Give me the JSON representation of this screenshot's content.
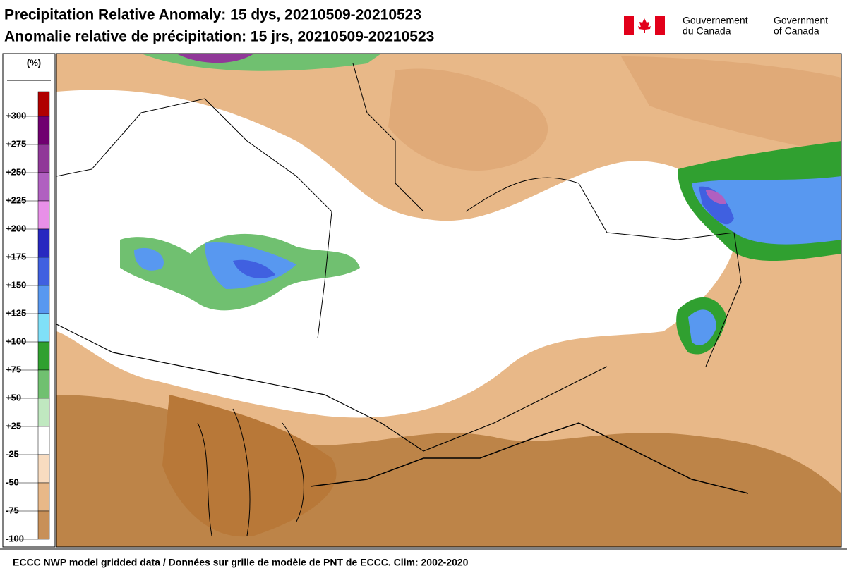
{
  "header": {
    "title_en": "Precipitation Relative Anomaly: 15 dys, 20210509-20210523",
    "title_fr": "Anomalie relative de précipitation: 15 jrs, 20210509-20210523",
    "gov_fr": [
      "Gouvernement",
      "du Canada"
    ],
    "gov_en": [
      "Government",
      "of Canada"
    ]
  },
  "legend": {
    "unit": "(%)",
    "labels": [
      "+300",
      "+275",
      "+250",
      "+225",
      "+200",
      "+175",
      "+150",
      "+125",
      "+100",
      "+75",
      "+50",
      "+25",
      "-25",
      "-50",
      "-75",
      "-100"
    ],
    "colors": [
      "#b00000",
      "#700070",
      "#903898",
      "#b060c0",
      "#e890e8",
      "#2828c0",
      "#4060e0",
      "#5898f0",
      "#80e0f8",
      "#30a030",
      "#70c070",
      "#c0e8c0",
      "#ffffff",
      "#f8dcc0",
      "#e8b888",
      "#c89058"
    ]
  },
  "footer": "ECCC NWP model gridded data / Données sur grille de modèle de PNT de ECCC. Clim: 2002-2020"
}
